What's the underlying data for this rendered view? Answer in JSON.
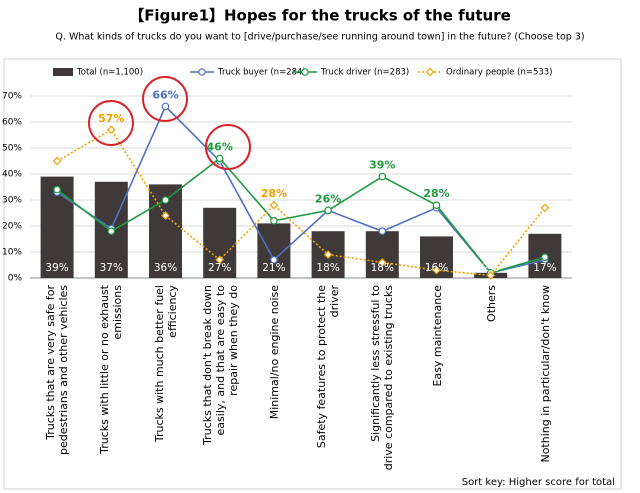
{
  "chart_data": {
    "type": "bar",
    "title": "【Figure1】Hopes for the trucks of the future",
    "subtitle": "Q. What kinds of trucks do you want to [drive/purchase/see running around town] in the future? (Choose top 3)",
    "note": "Sort key: Higher score for total",
    "categories": [
      "Trucks that are very safe for pedestrians and other vehicles",
      "Trucks with little or no exhaust emissions",
      "Trucks with much better fuel efficiency",
      "Trucks that don't break down easily, and that are easy to repair when they do",
      "Minimal/no engine noise",
      "Safety features to protect the driver",
      "Significantly less stressful to drive compared to existing trucks",
      "Easy maintenance",
      "Others",
      "Nothing in particular/don't know"
    ],
    "series": [
      {
        "name": "Total (n=1,100)",
        "type": "bar",
        "color": "#3f3a39",
        "values": [
          39,
          37,
          36,
          27,
          21,
          18,
          18,
          16,
          2,
          17
        ],
        "value_labels": [
          "39%",
          "37%",
          "36%",
          "27%",
          "21%",
          "18%",
          "18%",
          "16%",
          "2%",
          "17%"
        ]
      },
      {
        "name": "Truck buyer (n=284)",
        "type": "line",
        "marker": "circle",
        "line_style": "solid",
        "color": "#4f72be",
        "values": [
          33,
          19,
          66,
          45,
          7,
          26,
          18,
          27,
          2,
          7
        ],
        "value_labels": [
          null,
          null,
          "66%",
          null,
          null,
          null,
          null,
          null,
          null,
          null
        ]
      },
      {
        "name": "Truck driver (n=283)",
        "type": "line",
        "marker": "circle",
        "line_style": "solid",
        "color": "#1f9a3d",
        "values": [
          34,
          18,
          30,
          46,
          22,
          26,
          39,
          28,
          2,
          8
        ],
        "value_labels": [
          null,
          null,
          null,
          "46%",
          null,
          "26%",
          "39%",
          "28%",
          null,
          null
        ]
      },
      {
        "name": "Ordinary people (n=533)",
        "type": "line",
        "marker": "diamond",
        "line_style": "dotted",
        "color": "#f0a000",
        "values": [
          45,
          57,
          24,
          7,
          28,
          9,
          6,
          3,
          1,
          27
        ],
        "value_labels": [
          null,
          "57%",
          null,
          null,
          "28%",
          null,
          null,
          null,
          null,
          null
        ]
      }
    ],
    "ylim": [
      0,
      70
    ],
    "yticks": [
      {
        "value": 0,
        "label": "0%"
      },
      {
        "value": 10,
        "label": "10%"
      },
      {
        "value": 20,
        "label": "20%"
      },
      {
        "value": 30,
        "label": "30%"
      },
      {
        "value": 40,
        "label": "40%"
      },
      {
        "value": 50,
        "label": "50%"
      },
      {
        "value": 60,
        "label": "60%"
      },
      {
        "value": 70,
        "label": "70%"
      }
    ],
    "grid": true
  }
}
